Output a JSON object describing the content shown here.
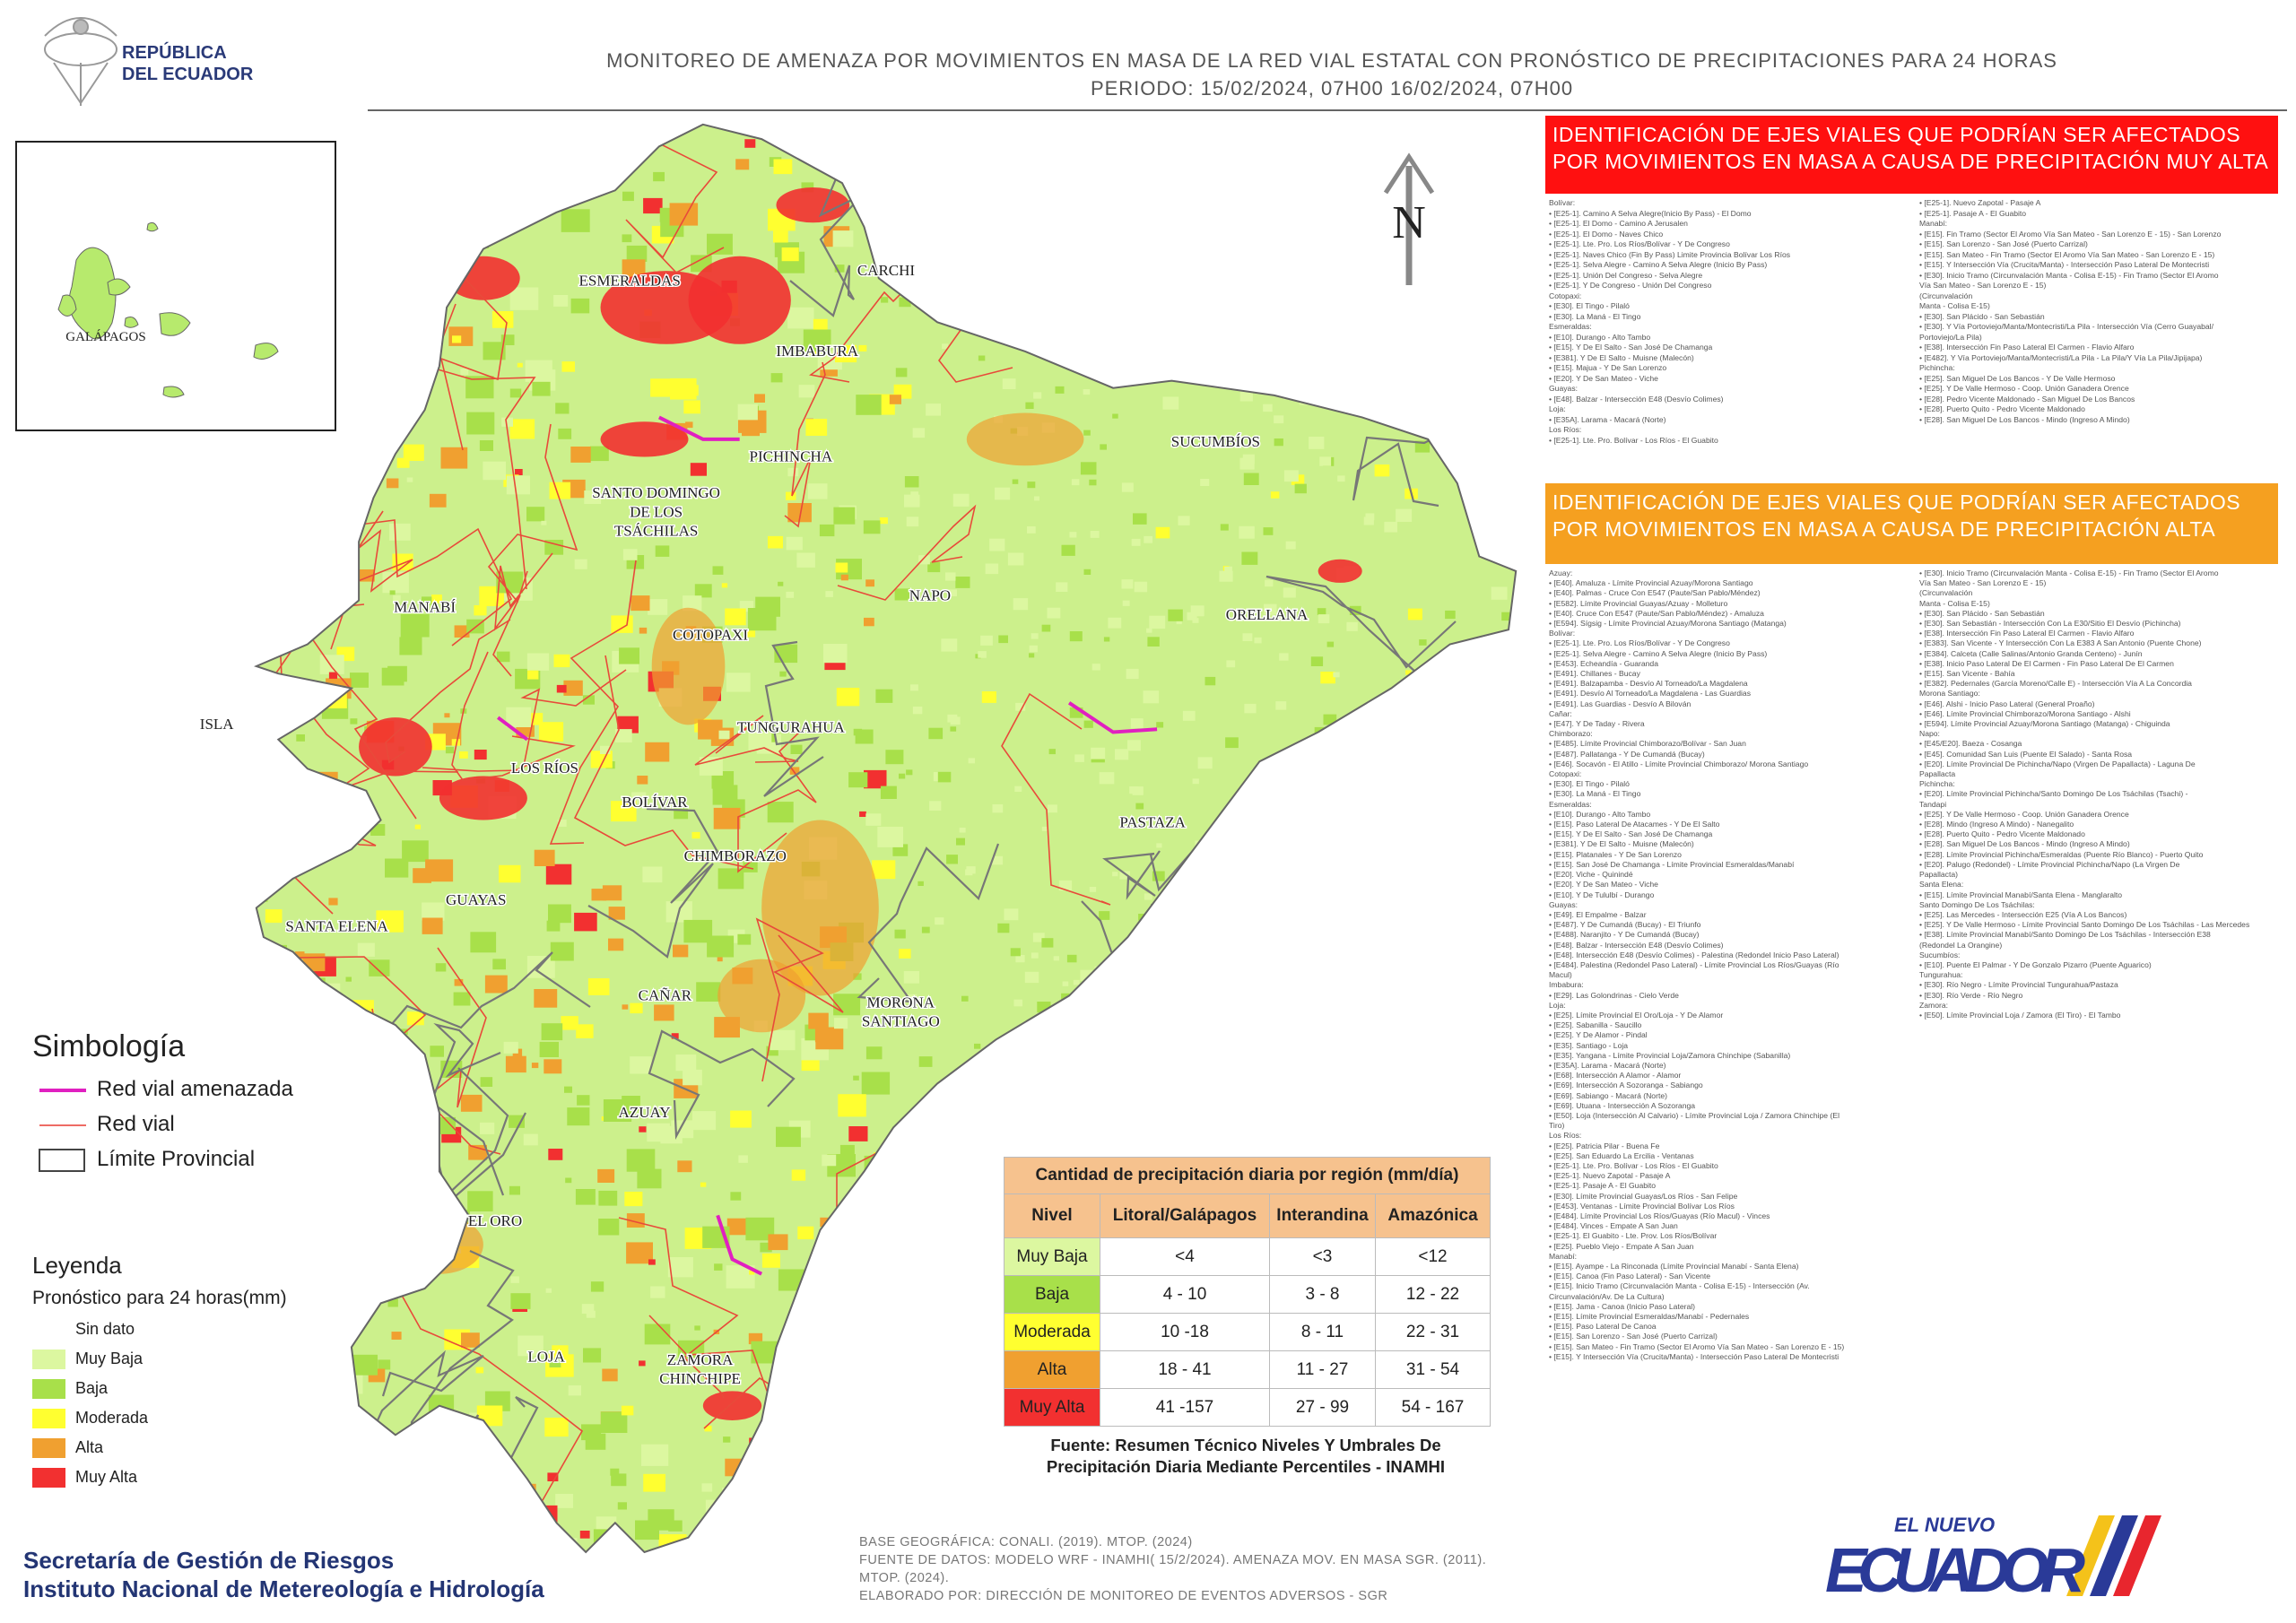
{
  "header": {
    "logo": [
      "REPÚBLICA",
      "DEL ECUADOR"
    ],
    "title": "MONITOREO DE AMENAZA POR MOVIMIENTOS EN MASA DE LA RED VIAL  ESTATAL  CON PRONÓSTICO  DE  PRECIPITACIONES PARA 24 HORAS",
    "period": "PERIODO: 15/02/2024, 07H00 16/02/2024, 07H00"
  },
  "map": {
    "north": "N",
    "inset_label": "GALÁPAGOS",
    "provinces": [
      [
        "ESMERALDAS"
      ],
      [
        "CARCHI"
      ],
      [
        "IMBABURA"
      ],
      [
        "PICHINCHA"
      ],
      [
        "SUCUMBÍOS"
      ],
      [
        "SANTO DOMINGO",
        "DE LOS",
        "TSÁCHILAS"
      ],
      [
        "MANABÍ"
      ],
      [
        "COTOPAXI"
      ],
      [
        "NAPO"
      ],
      [
        "ORELLANA"
      ],
      [
        "ISLA"
      ],
      [
        "TUNGURAHUA"
      ],
      [
        "LOS RÍOS"
      ],
      [
        "BOLÍVAR"
      ],
      [
        "PASTAZA"
      ],
      [
        "CHIMBORAZO"
      ],
      [
        "GUAYAS"
      ],
      [
        "SANTA ELENA"
      ],
      [
        "CAÑAR"
      ],
      [
        "MORONA",
        "SANTIAGO"
      ],
      [
        "AZUAY"
      ],
      [
        "EL ORO"
      ],
      [
        "LOJA"
      ],
      [
        "ZAMORA",
        "CHINCHIPE"
      ]
    ]
  },
  "panels": [
    {
      "title": "IDENTIFICACIÓN DE EJES VIALES QUE PODRÍAN SER AFECTADOS POR MOVIMIENTOS EN MASA A CAUSA DE PRECIPITACIÓN MUY ALTA",
      "color": "#ff1010",
      "left": [
        "Bolívar:",
        "• [E25-1]. Camino A Selva Alegre(Inicio By Pass) - El Domo",
        "• [E25-1]. El Domo - Camino A Jerusalen",
        "• [E25-1]. El Domo - Naves Chico",
        "• [E25-1]. Lte. Pro. Los Ríos/Bolívar - Y De Congreso",
        "• [E25-1]. Naves Chico (Fin By Pass) Limite Provincia Bolívar Los Ríos",
        "• [E25-1]. Selva Alegre - Camino A Selva Alegre (Inicio By Pass)",
        "• [E25-1]. Unión Del Congreso - Selva Alegre",
        "• [E25-1]. Y De Congreso - Unión Del Congreso",
        "Cotopaxi:",
        "• [E30]. El Tingo - Pilaló",
        "• [E30]. La Maná - El Tingo",
        "Esmeraldas:",
        "• [E10]. Durango - Alto Tambo",
        "• [E15]. Y De El Salto - San José De Chamanga",
        "• [E381]. Y De El Salto - Muisne (Malecón)",
        "• [E15]. Majua - Y De San Lorenzo",
        "• [E20]. Y De San Mateo - Viche",
        "Guayas:",
        "• [E48]. Balzar - Intersección E48 (Desvío Colimes)",
        "Loja:",
        "• [E35A]. Larama - Macará (Norte)",
        "Los Ríos:",
        "• [E25-1]. Lte. Pro. Bolívar - Los Ríos - El Guabito"
      ],
      "right": [
        "• [E25-1]. Nuevo Zapotal - Pasaje A",
        "• [E25-1]. Pasaje A - El Guabito",
        "Manabí:",
        "• [E15]. Fin Tramo (Sector El Aromo Vía San Mateo - San Lorenzo E - 15) - San Lorenzo",
        "• [E15]. San Lorenzo - San José (Puerto Carrizal)",
        "• [E15]. San Mateo - Fin Tramo (Sector El Aromo Vía San Mateo - San Lorenzo E - 15)",
        "• [E15]. Y Intersección Vía (Crucita/Manta) - Intersección Paso Lateral De Montecristi",
        "• [E30]. Inicio Tramo (Circunvalación Manta - Colisa E-15) - Fin Tramo (Sector El Aromo",
        "Vía San Mateo - San Lorenzo E - 15)",
        "(Circunvalación",
        "Manta - Colisa E-15)",
        "• [E30]. San Plácido - San Sebastián",
        "• [E30]. Y Vía Portoviejo/Manta/Montecristi/La Pila - Intersección Vía (Cerro Guayabal/",
        "Portoviejo/La Pila)",
        "• [E38]. Intersección Fin Paso Lateral El Carmen - Flavio Alfaro",
        "• [E482]. Y Vía Portoviejo/Manta/Montecristi/La Pila - La Pila/Y Vía La Pila/Jipijapa)",
        "Pichincha:",
        "• [E25]. San Miguel De Los Bancos - Y De Valle Hermoso",
        "• [E25]. Y De Valle Hermoso - Coop. Unión Ganadera Orence",
        "• [E28]. Pedro Vicente Maldonado - San Miguel De Los Bancos",
        "• [E28]. Puerto Quito - Pedro Vicente Maldonado",
        "• [E28]. San Miguel De Los Bancos - Mindo (Ingreso A Mindo)"
      ]
    },
    {
      "title": "IDENTIFICACIÓN DE EJES VIALES QUE PODRÍAN SER AFECTADOS POR MOVIMIENTOS EN MASA A CAUSA DE PRECIPITACIÓN  ALTA",
      "color": "#f5a020",
      "left": [
        "Azuay:",
        "• [E40]. Amaluza - Límite Provincial Azuay/Morona Santiago",
        "• [E40]. Palmas - Cruce Con E547 (Paute/San Pablo/Méndez)",
        "• [E582]. Límite Provincial Guayas/Azuay - Molleturo",
        "• [E40]. Cruce Con E547 (Paute/San Pablo/Méndez) - Amaluza",
        "• [E594]. Sígsig - Límite Provincial Azuay/Morona Santiago (Matanga)",
        "Bolívar:",
        "• [E25-1]. Lte. Pro. Los Ríos/Bolívar - Y De Congreso",
        "• [E25-1]. Selva Alegre - Camino A Selva Alegre (Inicio By Pass)",
        "• [E453]. Echeandía - Guaranda",
        "• [E491]. Chillanes - Bucay",
        "• [E491]. Balzapamba - Desvío Al Torneado/La Magdalena",
        "• [E491]. Desvío Al Torneado/La Magdalena - Las Guardias",
        "• [E491]. Las Guardias - Desvío A Bilován",
        "Cañar:",
        "• [E47]. Y De Taday - Rivera",
        "Chimborazo:",
        "• [E485]. Límite Provincial Chimborazo/Bolívar - San Juan",
        "• [E487]. Pallatanga - Y De Cumandá (Bucay)",
        "• [E46]. Socavón - El Atillo - Límite Provincial Chimborazo/ Morona Santiago",
        "Cotopaxi:",
        "• [E30]. El Tingo - Pilaló",
        "• [E30]. La Maná - El Tingo",
        "Esmeraldas:",
        "• [E10]. Durango - Alto Tambo",
        "• [E15]. Paso Lateral De Atacames - Y De El Salto",
        "• [E15]. Y De El Salto - San José De Chamanga",
        "• [E381]. Y De El Salto - Muisne (Malecón)",
        "• [E15]. Platanales - Y De San Lorenzo",
        "• [E15]. San José De Chamanga - Límite Provincial Esmeraldas/Manabí",
        "• [E20]. Viche - Quinindé",
        "• [E20]. Y De San Mateo - Viche",
        "• [E10]. Y De Tululbí - Durango",
        "Guayas:",
        "• [E49]. El Empalme - Balzar",
        "• [E487]. Y De Cumandá (Bucay) - El Triunfo",
        "• [E488]. Naranjito - Y De Cumandá (Bucay)",
        "• [E48]. Balzar - Intersección E48 (Desvío Colimes)",
        "• [E48]. Intersección E48 (Desvío Colimes) - Palestina (Redondel Inicio Paso Lateral)",
        "• [E484]. Palestina (Redondel Paso Lateral) - Límite Provincial Los Ríos/Guayas (Río",
        "Macul)",
        "Imbabura:",
        "• [E29]. Las Golondrinas - Cielo Verde",
        "Loja:",
        "• [E25]. Límite Provincial El Oro/Loja - Y De Alamor",
        "• [E25]. Sabanilla - Saucillo",
        "• [E25]. Y De Alamor - Pindal",
        "• [E35]. Santiago - Loja",
        "• [E35]. Yangana - Límite Provincial Loja/Zamora Chinchipe (Sabanilla)",
        "• [E35A]. Larama - Macará (Norte)",
        "• [E68]. Intersección A Alamor - Alamor",
        "• [E69]. Intersección A Sozoranga - Sabiango",
        "• [E69]. Sabiango - Macará (Norte)",
        "• [E69]. Utuana - Intersección A Sozoranga",
        "• [E50]. Loja (Intersección Al Calvario) - Límite Provincial Loja / Zamora Chinchipe (El",
        "Tiro)",
        "Los Ríos:",
        "• [E25]. Patricia Pilar - Buena Fe",
        "• [E25]. San Eduardo La Ercilia - Ventanas",
        "• [E25-1]. Lte. Pro. Bolívar - Los Ríos - El Guabito",
        "• [E25-1]. Nuevo Zapotal - Pasaje A",
        "• [E25-1]. Pasaje A - El Guabito",
        "• [E30]. Límite Provincial Guayas/Los Ríos - San Felipe",
        "• [E453]. Ventanas - Límite Provincial Bolívar Los Ríos",
        "• [E484]. Límite Provincial Los Ríos/Guayas (Río Macul) - Vinces",
        "• [E484]. Vinces - Empate A San Juan",
        "• [E25-1]. El Guabito - Lte. Prov. Los Ríos/Bolívar",
        "• [E25]. Pueblo Viejo - Empate A San Juan",
        "Manabí:",
        "• [E15]. Ayampe - La Rinconada (Límite Provincial Manabí - Santa Elena)",
        "• [E15]. Canoa (Fin Paso Lateral) - San Vicente",
        "• [E15]. Inicio Tramo (Circunvalación Manta - Colisa E-15) - Intersección (Av.",
        "Circunvalación/Av. De La Cultura)",
        "• [E15]. Jama - Canoa (Inicio Paso Lateral)",
        "• [E15]. Límite Provincial Esmeraldas/Manabí - Pedernales",
        "• [E15]. Paso Lateral De Canoa",
        "• [E15]. San Lorenzo - San José (Puerto Carrizal)",
        "• [E15]. San Mateo - Fin Tramo (Sector El Aromo Vía San Mateo - San Lorenzo E - 15)",
        "• [E15]. Y Intersección Vía (Crucita/Manta) - Intersección Paso Lateral De Montecristi"
      ],
      "right": [
        "• [E30]. Inicio Tramo (Circunvalación Manta - Colisa E-15) - Fin Tramo (Sector El Aromo",
        "Vía San Mateo - San Lorenzo E - 15)",
        "(Circunvalación",
        "Manta - Colisa E-15)",
        "• [E30]. San Plácido - San Sebastián",
        "• [E30]. San Sebastián - Intersección Con La E30/Sitio El Desvío (Pichincha)",
        "• [E38]. Intersección Fin Paso Lateral El Carmen - Flavio Alfaro",
        "• [E383]. San Vicente - Y Intersección Con La E383 A San Antonio (Puente Chone)",
        "• [E384]. Calceta (Calle Salinas/Antonio Granda Centeno) - Junín",
        "• [E38]. Inicio Paso Lateral De El Carmen - Fin Paso Lateral De El Carmen",
        "• [E15]. San Vicente - Bahía",
        "• [E382]. Pedernales (García Moreno/Calle E) - Intersección Vía A La Concordia",
        "Morona Santiago:",
        "• [E46]. Alshi - Inicio Paso Lateral (General Proaño)",
        "• [E46]. Límite Provincial Chimborazo/Morona Santiago - Alshi",
        "• [E594]. Límite Provincial Azuay/Morona Santiago (Matanga) - Chiguinda",
        "Napo:",
        "• [E45/E20]. Baeza - Cosanga",
        "• [E45]. Comunidad San Luis (Puente El Salado) - Santa Rosa",
        "• [E20]. Límite Provincial De Pichincha/Napo (Virgen De Papallacta) - Laguna De",
        "Papallacta",
        "Pichincha:",
        "• [E20]. Límite Provincial Pichincha/Santo Domingo De Los Tsáchilas (Tsachi) -",
        "Tandapi",
        "• [E25]. Y De Valle Hermoso - Coop. Unión Ganadera Orence",
        "• [E28]. Mindo (Ingreso A Mindo) - Nanegalito",
        "• [E28]. Puerto Quito - Pedro Vicente Maldonado",
        "• [E28]. San Miguel De Los Bancos - Mindo (Ingreso A Mindo)",
        "• [E28]. Límite Provincial Pichincha/Esmeraldas (Puente Río Blanco) - Puerto Quito",
        "• [E20]. Palugo (Redondel) - Límite Provincial Pichincha/Napo (La Virgen De",
        "Papallacta)",
        "Santa Elena:",
        "• [E15]. Límite Provincial Manabí/Santa Elena - Manglaralto",
        "Santo Domingo De Los Tsáchilas:",
        "• [E25]. Las Mercedes - Intersección E25 (Vía A Los Bancos)",
        "• [E25]. Y De Valle Hermoso - Límite Provincial Santo Domingo De Los Tsáchilas - Las Mercedes",
        "• [E38]. Límite Provincial Manabí/Santo Domingo De Los Tsáchilas - Intersección E38",
        "(Redondel La Orangine)",
        "Sucumbíos:",
        "• [E10]. Puente El Palmar - Y De Gonzalo Pizarro (Puente Aguarico)",
        "Tungurahua:",
        "• [E30]. Río Negro - Límite Provincial Tungurahua/Pastaza",
        "• [E30]. Río Verde - Río Negro",
        "Zamora:",
        "• [E50]. Límite Provincial Loja / Zamora (El Tiro) - El Tambo"
      ]
    }
  ],
  "simbologia": {
    "title": "Simbología",
    "items": [
      "Red vial amenazada",
      "Red vial",
      "Límite Provincial"
    ]
  },
  "leyenda": {
    "title": "Leyenda",
    "subtitle": "Pronóstico para 24 horas(mm)",
    "items": [
      {
        "label": "Sin dato",
        "color": "#ffffff"
      },
      {
        "label": "Muy Baja",
        "color": "#dcf7a0"
      },
      {
        "label": "Baja",
        "color": "#a8e04a"
      },
      {
        "label": "Moderada",
        "color": "#ffff30"
      },
      {
        "label": "Alta",
        "color": "#f0a030"
      },
      {
        "label": "Muy Alta",
        "color": "#f23030"
      }
    ]
  },
  "table": {
    "title": "Cantidad de precipitación diaria por región (mm/día)",
    "headers": [
      "Nivel",
      "Litoral/Galápagos",
      "Interandina",
      "Amazónica"
    ],
    "rows": [
      [
        "Muy Baja",
        "<4",
        "<3",
        "<12"
      ],
      [
        "Baja",
        "4 - 10",
        "3 - 8",
        "12 - 22"
      ],
      [
        "Moderada",
        "10 -18",
        "8 - 11",
        "22 - 31"
      ],
      [
        "Alta",
        "18 - 41",
        "11 - 27",
        "31 - 54"
      ],
      [
        "Muy Alta",
        "41 -157",
        "27 - 99",
        "54 - 167"
      ]
    ],
    "source": [
      "Fuente: Resumen Técnico Niveles Y Umbrales De",
      "Precipitación Diaria Mediante Percentiles - INAMHI"
    ]
  },
  "footer": {
    "org": [
      "Secretaría de Gestión de Riesgos",
      "Instituto Nacional de Metereología e Hidrología"
    ],
    "credits": [
      "BASE GEOGRÁFICA: CONALI. (2019). MTOP. (2024)",
      "FUENTE DE DATOS: MODELO WRF - INAMHI( 15/2/2024).  AMENAZA MOV. EN MASA SGR. (2011).",
      "MTOP. (2024).",
      "ELABORADO POR: DIRECCIÓN DE MONITOREO DE EVENTOS ADVERSOS - SGR"
    ]
  },
  "brand": [
    "EL NUEVO",
    "ECUADOR"
  ]
}
